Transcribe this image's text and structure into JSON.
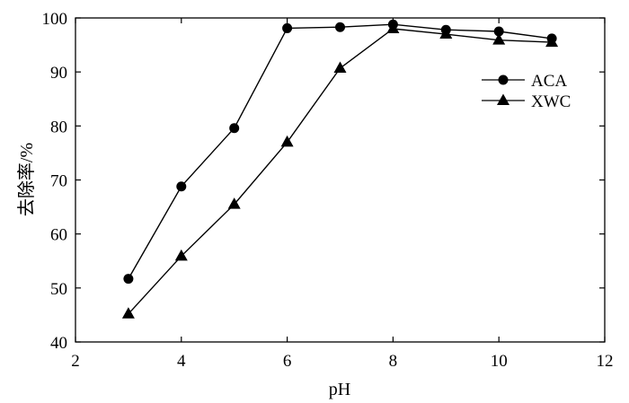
{
  "chart_data": {
    "type": "line",
    "xlabel": "pH",
    "ylabel": "去除率/%",
    "xlim": [
      2,
      12
    ],
    "ylim": [
      40,
      100
    ],
    "xticks": [
      2,
      4,
      6,
      8,
      10,
      12
    ],
    "yticks": [
      40,
      50,
      60,
      70,
      80,
      90,
      100
    ],
    "grid": false,
    "legend_position": "upper-right",
    "series": [
      {
        "name": "ACA",
        "marker": "circle",
        "color": "#000000",
        "x": [
          3,
          4,
          5,
          6,
          7,
          8,
          9,
          10,
          11
        ],
        "y": [
          51.7,
          68.8,
          79.6,
          98.1,
          98.3,
          98.8,
          97.8,
          97.5,
          96.2
        ]
      },
      {
        "name": "XWC",
        "marker": "triangle",
        "color": "#000000",
        "x": [
          3,
          4,
          5,
          6,
          7,
          8,
          9,
          10,
          11
        ],
        "y": [
          45.2,
          55.9,
          65.5,
          77.0,
          90.7,
          98.0,
          97.0,
          95.9,
          95.5
        ]
      }
    ]
  }
}
